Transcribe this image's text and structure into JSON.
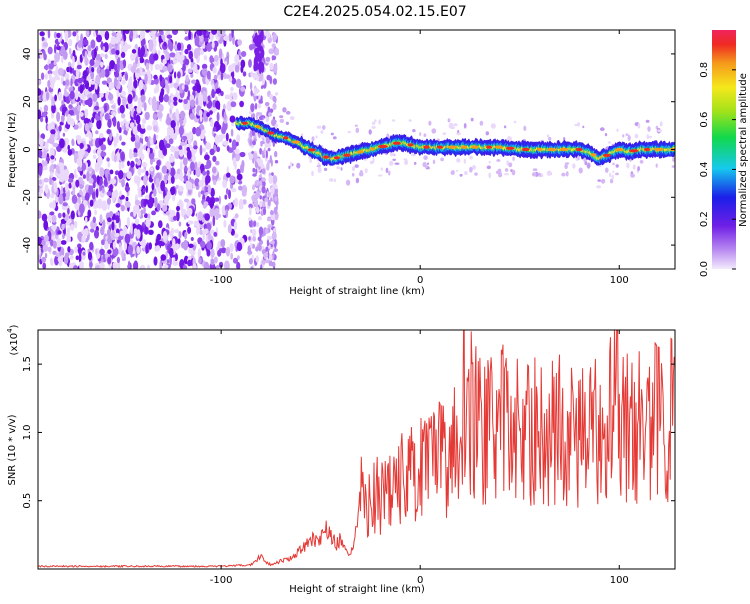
{
  "title": "C2E4.2025.054.02.15.E07",
  "chart_data": [
    {
      "type": "heatmap",
      "xlabel": "Height of straight line (km)",
      "ylabel": "Frequency (Hz)",
      "xlim": [
        -192,
        128
      ],
      "ylim": [
        -50,
        50
      ],
      "xticks": [
        -100,
        0,
        100
      ],
      "yticks": [
        -40,
        -20,
        0,
        20,
        40
      ],
      "colorbar": {
        "label": "Normalized spectral amplitude",
        "range": [
          0,
          0.96
        ],
        "ticks": [
          0.0,
          0.2,
          0.4,
          0.6,
          0.8
        ],
        "tick_labels": [
          "0.0",
          "0.2",
          "0.4",
          "0.6",
          "0.8"
        ]
      },
      "ridge": {
        "x": [
          -92,
          -85,
          -80,
          -73,
          -68,
          -62,
          -58,
          -52,
          -48,
          -44,
          -40,
          -35,
          -30,
          -25,
          -20,
          -15,
          -10,
          -5,
          0,
          10,
          20,
          30,
          40,
          50,
          60,
          70,
          80,
          85,
          90,
          95,
          100,
          105,
          110,
          115,
          120,
          128
        ],
        "y": [
          11,
          11,
          9,
          6,
          5,
          3,
          1,
          -1,
          -3,
          -4,
          -3,
          -2,
          -1,
          0,
          1,
          2,
          3,
          2,
          1,
          1,
          1,
          1,
          1,
          0,
          0,
          0,
          0,
          -1,
          -4,
          -2,
          0,
          -1,
          0,
          0,
          0,
          0
        ]
      },
      "grid": false,
      "legend": "none"
    },
    {
      "type": "line",
      "xlabel": "Height of straight line (km)",
      "ylabel": "SNR (10 * v/v)",
      "scale_label": "(x10",
      "scale_exp": "4",
      "xlim": [
        -192,
        128
      ],
      "ylim": [
        0,
        1.75
      ],
      "xticks": [
        -100,
        0,
        100
      ],
      "yticks": [
        0.5,
        1.0,
        1.5
      ],
      "y_tick_labels": [
        "0.5",
        "1.0",
        "1.5"
      ],
      "color": "#e53935",
      "series": [
        {
          "x": [
            -192,
            -100,
            -85,
            -80,
            -78,
            -75,
            -70,
            -65,
            -60,
            -55,
            -50,
            -47,
            -45,
            -42,
            -40,
            -35,
            -32,
            -30,
            -28,
            -25,
            -20,
            -15,
            -10,
            -5,
            0,
            5,
            10,
            15,
            20,
            22,
            25,
            30,
            35,
            40,
            45,
            50,
            55,
            60,
            65,
            70,
            75,
            80,
            85,
            90,
            95,
            97,
            100,
            105,
            110,
            115,
            120,
            125,
            128
          ],
          "y": [
            0.02,
            0.02,
            0.03,
            0.1,
            0.06,
            0.03,
            0.06,
            0.08,
            0.14,
            0.21,
            0.22,
            0.3,
            0.25,
            0.18,
            0.22,
            0.09,
            0.3,
            0.72,
            0.45,
            0.5,
            0.55,
            0.62,
            0.65,
            0.7,
            0.72,
            0.75,
            0.8,
            0.85,
            1.0,
            1.45,
            1.15,
            1.05,
            1.0,
            1.1,
            1.0,
            1.05,
            1.0,
            1.0,
            1.0,
            1.05,
            0.95,
            1.0,
            0.95,
            1.05,
            1.1,
            1.75,
            1.2,
            1.0,
            1.05,
            1.0,
            1.15,
            1.05,
            1.7
          ]
        }
      ],
      "grid": false,
      "legend": "none"
    }
  ]
}
